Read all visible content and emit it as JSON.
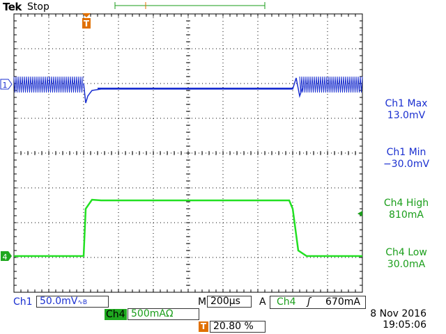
{
  "header": {
    "brand": "Tek",
    "status": "Stop"
  },
  "markers": {
    "trigger_letter": "T",
    "ch1_marker": "1",
    "ch4_marker": "4"
  },
  "measurements": [
    {
      "label": "Ch1 Max",
      "value": "13.0mV",
      "color": "#1a2fd0"
    },
    {
      "label": "Ch1 Min",
      "value": "−30.0mV",
      "color": "#1a2fd0"
    },
    {
      "label": "Ch4 High",
      "value": "810mA",
      "color": "#1a9e1a"
    },
    {
      "label": "Ch4 Low",
      "value": "30.0mA",
      "color": "#1a9e1a"
    }
  ],
  "bottom": {
    "ch1_label": "Ch1",
    "ch1_scale": "50.0mV",
    "ch1_suffix": "∿B",
    "ch4_label": "Ch4",
    "ch4_scale": "500mAΩ",
    "timebase_label": "M",
    "timebase": "200μs",
    "trigger_mode": "A",
    "trigger_source": "Ch4",
    "trigger_slope": "ʃ",
    "trigger_level": "670mA",
    "trigger_pos": "20.80 %"
  },
  "datetime": {
    "date": "8 Nov 2016",
    "time": "19:05:06"
  },
  "colors": {
    "ch1": "#1a2fd0",
    "ch4": "#22e022",
    "grid": "#000000",
    "trigger_marker": "#e07000"
  }
}
